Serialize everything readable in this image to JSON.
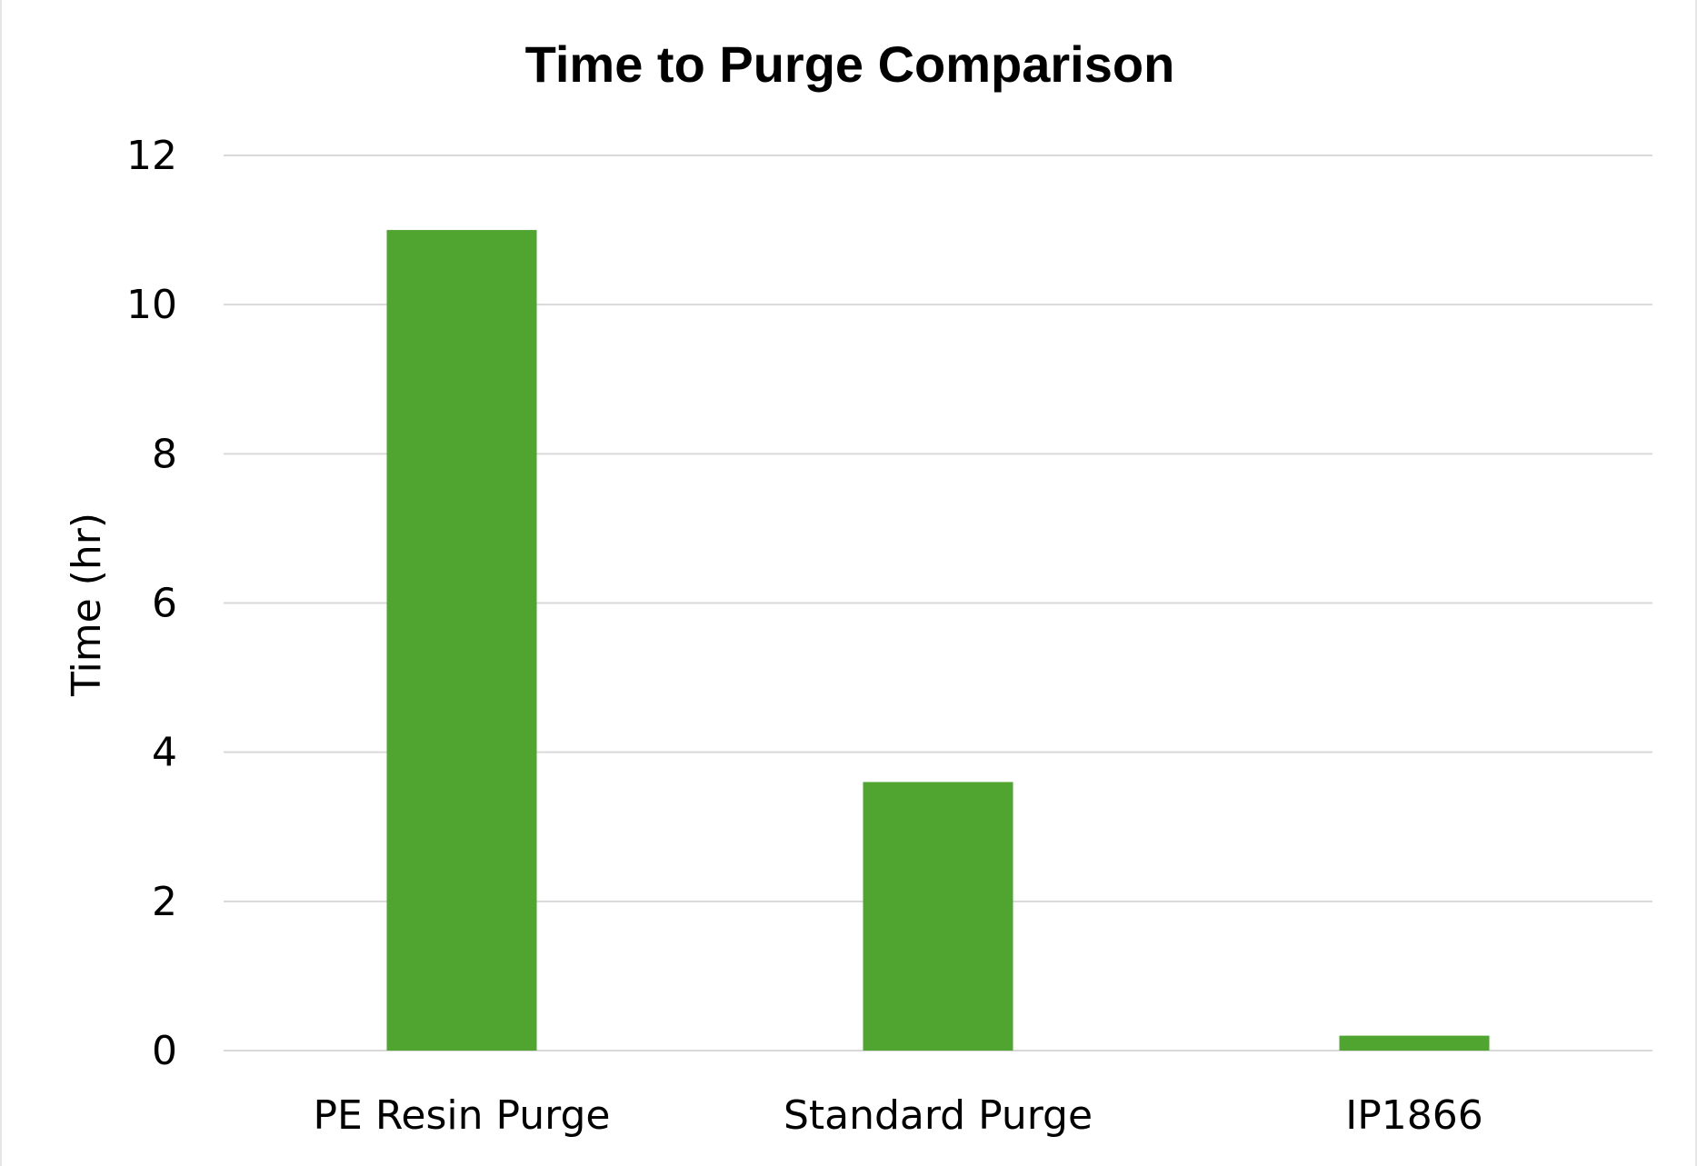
{
  "chart_data": {
    "type": "bar",
    "title": "Time to Purge Comparison",
    "xlabel": "",
    "ylabel": "Time (hr)",
    "categories": [
      "PE Resin Purge",
      "Standard Purge",
      "IP1866"
    ],
    "values": [
      11,
      3.6,
      0.2
    ],
    "ylim": [
      0,
      12
    ],
    "yticks": [
      0,
      2,
      4,
      6,
      8,
      10,
      12
    ],
    "grid": true,
    "legend": "none",
    "bar_color": "#4fa52f",
    "grid_color": "#d9d9d9"
  }
}
